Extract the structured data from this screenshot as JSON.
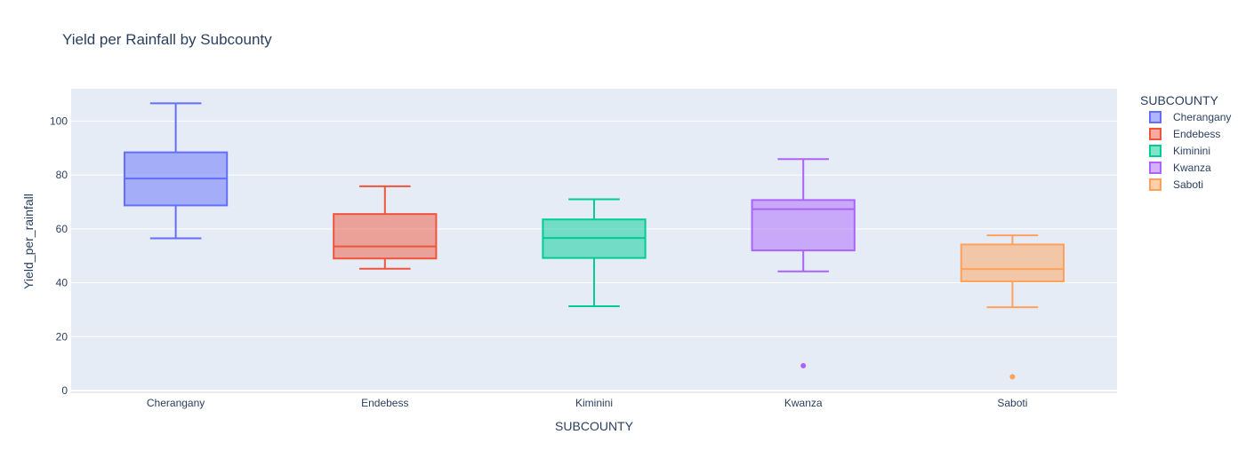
{
  "chart_data": {
    "type": "box",
    "title": "Yield per Rainfall by Subcounty",
    "xlabel": "SUBCOUNTY",
    "ylabel": "Yield_per_rainfall",
    "ylim": [
      -1,
      112
    ],
    "yticks": [
      0,
      20,
      40,
      60,
      80,
      100
    ],
    "grid": true,
    "legend": {
      "title": "SUBCOUNTY",
      "position": "right"
    },
    "categories": [
      "Cherangany",
      "Endebess",
      "Kiminini",
      "Kwanza",
      "Saboti"
    ],
    "series": [
      {
        "name": "Cherangany",
        "color": "#636efa",
        "min": 56.5,
        "q1": 68.7,
        "median": 78.7,
        "q3": 88.4,
        "max": 106.6,
        "outliers": []
      },
      {
        "name": "Endebess",
        "color": "#EF553B",
        "min": 45.2,
        "q1": 49.0,
        "median": 53.5,
        "q3": 65.5,
        "max": 75.8,
        "outliers": []
      },
      {
        "name": "Kiminini",
        "color": "#00cc96",
        "min": 31.3,
        "q1": 49.2,
        "median": 56.6,
        "q3": 63.5,
        "max": 71.0,
        "outliers": []
      },
      {
        "name": "Kwanza",
        "color": "#ab63fa",
        "min": 44.2,
        "q1": 52.0,
        "median": 67.3,
        "q3": 70.7,
        "max": 85.9,
        "outliers": [
          9.2
        ]
      },
      {
        "name": "Saboti",
        "color": "#FFA15A",
        "min": 30.9,
        "q1": 40.5,
        "median": 45.1,
        "q3": 54.2,
        "max": 57.6,
        "outliers": [
          5.1
        ]
      }
    ]
  }
}
